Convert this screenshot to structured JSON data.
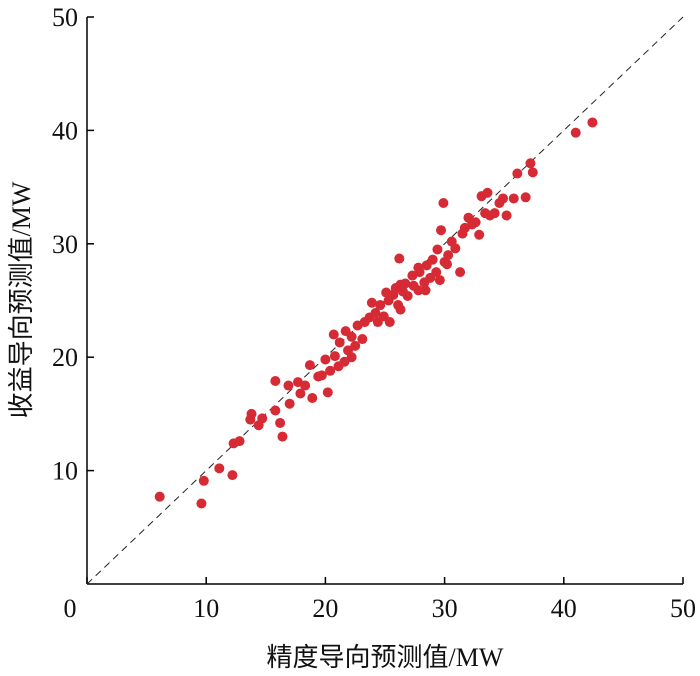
{
  "chart_data": {
    "type": "scatter",
    "x_label": "精度导向预测值/MW",
    "y_label": "收益导向预测值/MW",
    "xlim": [
      0,
      50
    ],
    "ylim": [
      0,
      50
    ],
    "xticks": [
      0,
      10,
      20,
      30,
      40,
      50
    ],
    "yticks": [
      10,
      20,
      30,
      40,
      50
    ],
    "diagonal": true,
    "color": "#d62a35",
    "x": [
      6.1,
      9.8,
      9.6,
      11.1,
      12.2,
      12.3,
      12.8,
      13.7,
      13.8,
      14.4,
      14.7,
      15.8,
      15.8,
      16.2,
      16.4,
      17.0,
      17.7,
      17.9,
      18.3,
      18.7,
      18.9,
      19.4,
      19.7,
      20.0,
      20.2,
      20.4,
      20.8,
      21.1,
      20.7,
      21.2,
      21.6,
      21.9,
      22.2,
      22.5,
      22.7,
      23.1,
      23.3,
      23.7,
      24.2,
      24.4,
      24.6,
      24.9,
      25.3,
      25.4,
      25.7,
      25.9,
      26.1,
      26.3,
      26.5,
      26.7,
      26.9,
      27.3,
      27.4,
      27.8,
      27.9,
      28.3,
      28.5,
      28.8,
      29.0,
      29.3,
      29.4,
      29.6,
      29.7,
      29.9,
      30.0,
      30.3,
      30.6,
      30.9,
      31.3,
      31.5,
      31.7,
      32.0,
      32.3,
      32.6,
      32.9,
      33.1,
      33.4,
      33.6,
      33.8,
      34.2,
      34.6,
      34.9,
      35.2,
      35.8,
      36.1,
      36.8,
      37.2,
      37.4,
      41.0,
      42.4,
      21.7,
      23.9,
      25.1,
      26.3,
      27.8,
      28.4,
      30.2,
      26.2,
      22.2,
      16.9
    ],
    "values": [
      7.7,
      9.1,
      7.1,
      10.2,
      9.6,
      12.4,
      12.6,
      14.5,
      15.0,
      14.0,
      14.6,
      17.9,
      15.3,
      14.2,
      13.0,
      15.9,
      17.8,
      16.8,
      17.5,
      19.3,
      16.4,
      18.3,
      18.4,
      19.8,
      16.9,
      18.8,
      20.1,
      19.2,
      22.0,
      21.3,
      19.6,
      20.6,
      21.8,
      21.0,
      22.8,
      21.6,
      23.1,
      23.5,
      23.9,
      23.1,
      24.6,
      23.6,
      25.0,
      23.1,
      25.5,
      26.1,
      24.6,
      24.2,
      25.8,
      26.5,
      25.4,
      27.2,
      26.3,
      25.9,
      27.5,
      26.6,
      28.1,
      27.0,
      28.6,
      27.5,
      29.5,
      26.8,
      31.2,
      33.6,
      28.4,
      29.0,
      30.2,
      29.6,
      27.5,
      30.9,
      31.4,
      32.3,
      31.7,
      31.9,
      30.8,
      34.2,
      32.7,
      34.5,
      32.5,
      32.7,
      33.6,
      34.0,
      32.5,
      34.0,
      36.2,
      34.1,
      37.1,
      36.3,
      39.8,
      40.7,
      22.3,
      24.8,
      25.7,
      26.4,
      27.9,
      25.9,
      28.2,
      28.7,
      20.0,
      17.5
    ]
  }
}
